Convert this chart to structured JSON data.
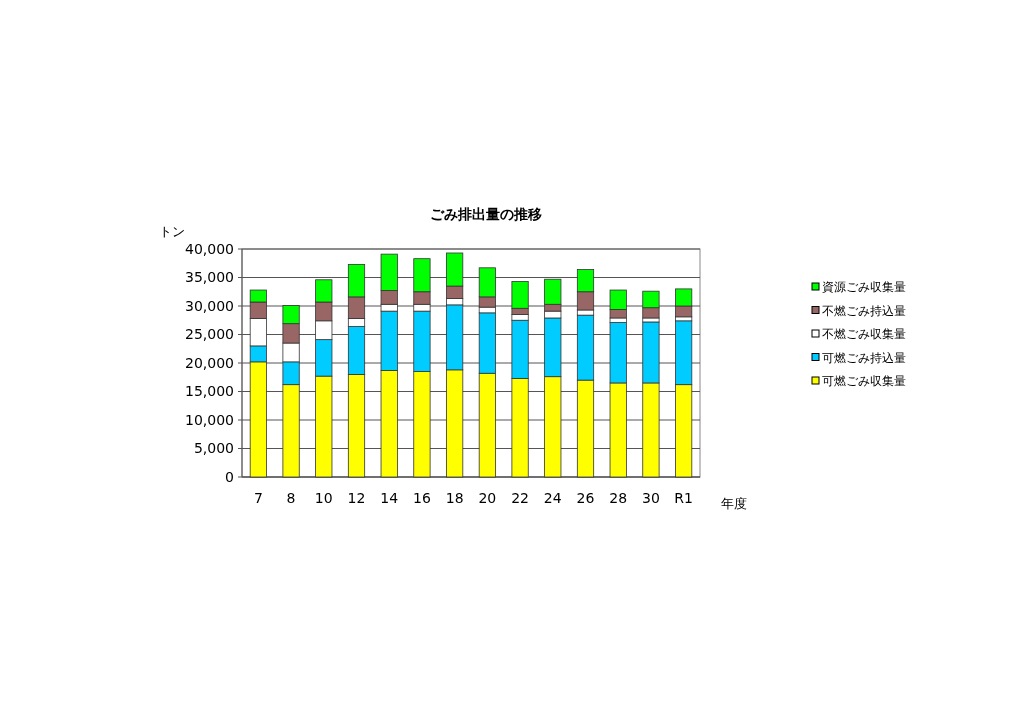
{
  "chart_data": {
    "type": "bar",
    "title": "ごみ排出量の推移",
    "ylabel": "トン",
    "xlabel": "年度",
    "categories": [
      "7",
      "8",
      "10",
      "12",
      "14",
      "16",
      "18",
      "20",
      "22",
      "24",
      "26",
      "28",
      "30",
      "R1"
    ],
    "stacked": true,
    "series": [
      {
        "name": "可燃ごみ収集量",
        "color": "#ffff00",
        "values": [
          20200,
          16200,
          17700,
          18000,
          18700,
          18500,
          18800,
          18200,
          17300,
          17600,
          17000,
          16500,
          16500,
          16200
        ]
      },
      {
        "name": "可燃ごみ持込量",
        "color": "#00ccff",
        "values": [
          2800,
          4000,
          6400,
          8400,
          10400,
          10600,
          11400,
          10600,
          10200,
          10300,
          11400,
          10600,
          10700,
          11200
        ]
      },
      {
        "name": "不燃ごみ収集量",
        "color": "#ffffff",
        "values": [
          4800,
          3300,
          3300,
          1400,
          1200,
          1200,
          1100,
          1000,
          1000,
          1200,
          900,
          800,
          700,
          700
        ]
      },
      {
        "name": "不燃ごみ持込量",
        "color": "#996666",
        "values": [
          2900,
          3400,
          3300,
          3800,
          2400,
          2200,
          2200,
          1800,
          1100,
          1200,
          3200,
          1500,
          1800,
          1900
        ]
      },
      {
        "name": "資源ごみ収集量",
        "color": "#00ff00",
        "values": [
          2100,
          3200,
          3900,
          5700,
          6400,
          5800,
          5800,
          5100,
          4700,
          4400,
          3900,
          3400,
          2900,
          3000
        ]
      }
    ],
    "ylim": [
      0,
      40000
    ],
    "yticks": [
      0,
      {
        "value": 5000,
        "label": "5,000"
      },
      {
        "value": 10000,
        "label": "10,000"
      },
      {
        "value": 15000,
        "label": "15,000"
      },
      {
        "value": 20000,
        "label": "20,000"
      },
      {
        "value": 25000,
        "label": "25,000"
      },
      {
        "value": 30000,
        "label": "30,000"
      },
      {
        "value": 35000,
        "label": "35,000"
      },
      {
        "value": 40000,
        "label": "40,000"
      }
    ],
    "grid": true,
    "legend": "right"
  }
}
